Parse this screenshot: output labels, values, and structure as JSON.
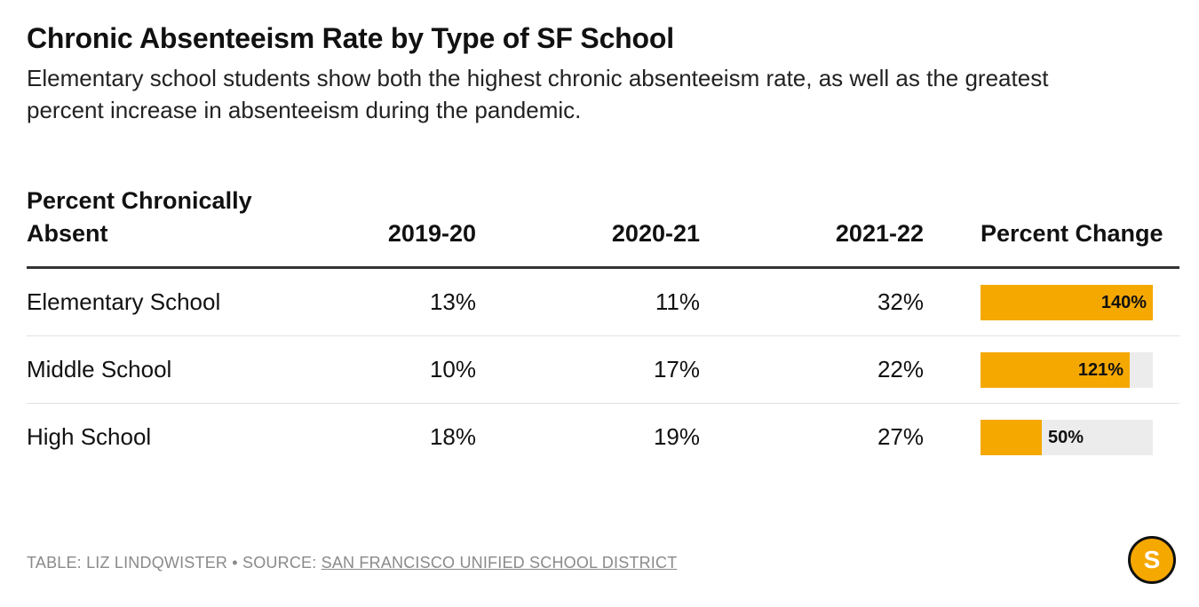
{
  "title": "Chronic Absenteeism Rate by Type of SF School",
  "subtitle": "Elementary school students show both the highest chronic absenteeism rate, as well as the greatest percent increase in absenteeism during the pandemic.",
  "headers": {
    "label": "Percent Chronically Absent",
    "y1": "2019-20",
    "y2": "2020-21",
    "y3": "2021-22",
    "pct": "Percent Change"
  },
  "rows": [
    {
      "label": "Elementary School",
      "y1": "13%",
      "y2": "11%",
      "y3": "32%",
      "pct_label": "140%",
      "pct": 140
    },
    {
      "label": "Middle School",
      "y1": "10%",
      "y2": "17%",
      "y3": "22%",
      "pct_label": "121%",
      "pct": 121
    },
    {
      "label": "High School",
      "y1": "18%",
      "y2": "19%",
      "y3": "27%",
      "pct_label": "50%",
      "pct": 50
    }
  ],
  "footer": {
    "prefix": "TABLE: LIZ LINDQWISTER • SOURCE: ",
    "source": "SAN FRANCISCO UNIFIED SCHOOL DISTRICT"
  },
  "logo_letter": "S",
  "colors": {
    "bar": "#f5a800",
    "track": "#ececec",
    "rule": "#333333"
  },
  "chart_data": {
    "type": "table",
    "title": "Chronic Absenteeism Rate by Type of SF School",
    "columns": [
      "Percent Chronically Absent",
      "2019-20",
      "2020-21",
      "2021-22",
      "Percent Change"
    ],
    "categories": [
      "Elementary School",
      "Middle School",
      "High School"
    ],
    "series": [
      {
        "name": "2019-20",
        "values": [
          13,
          10,
          18
        ]
      },
      {
        "name": "2020-21",
        "values": [
          11,
          17,
          19
        ]
      },
      {
        "name": "2021-22",
        "values": [
          32,
          22,
          27
        ]
      },
      {
        "name": "Percent Change",
        "values": [
          140,
          121,
          50
        ]
      }
    ],
    "bar_max": 140
  }
}
